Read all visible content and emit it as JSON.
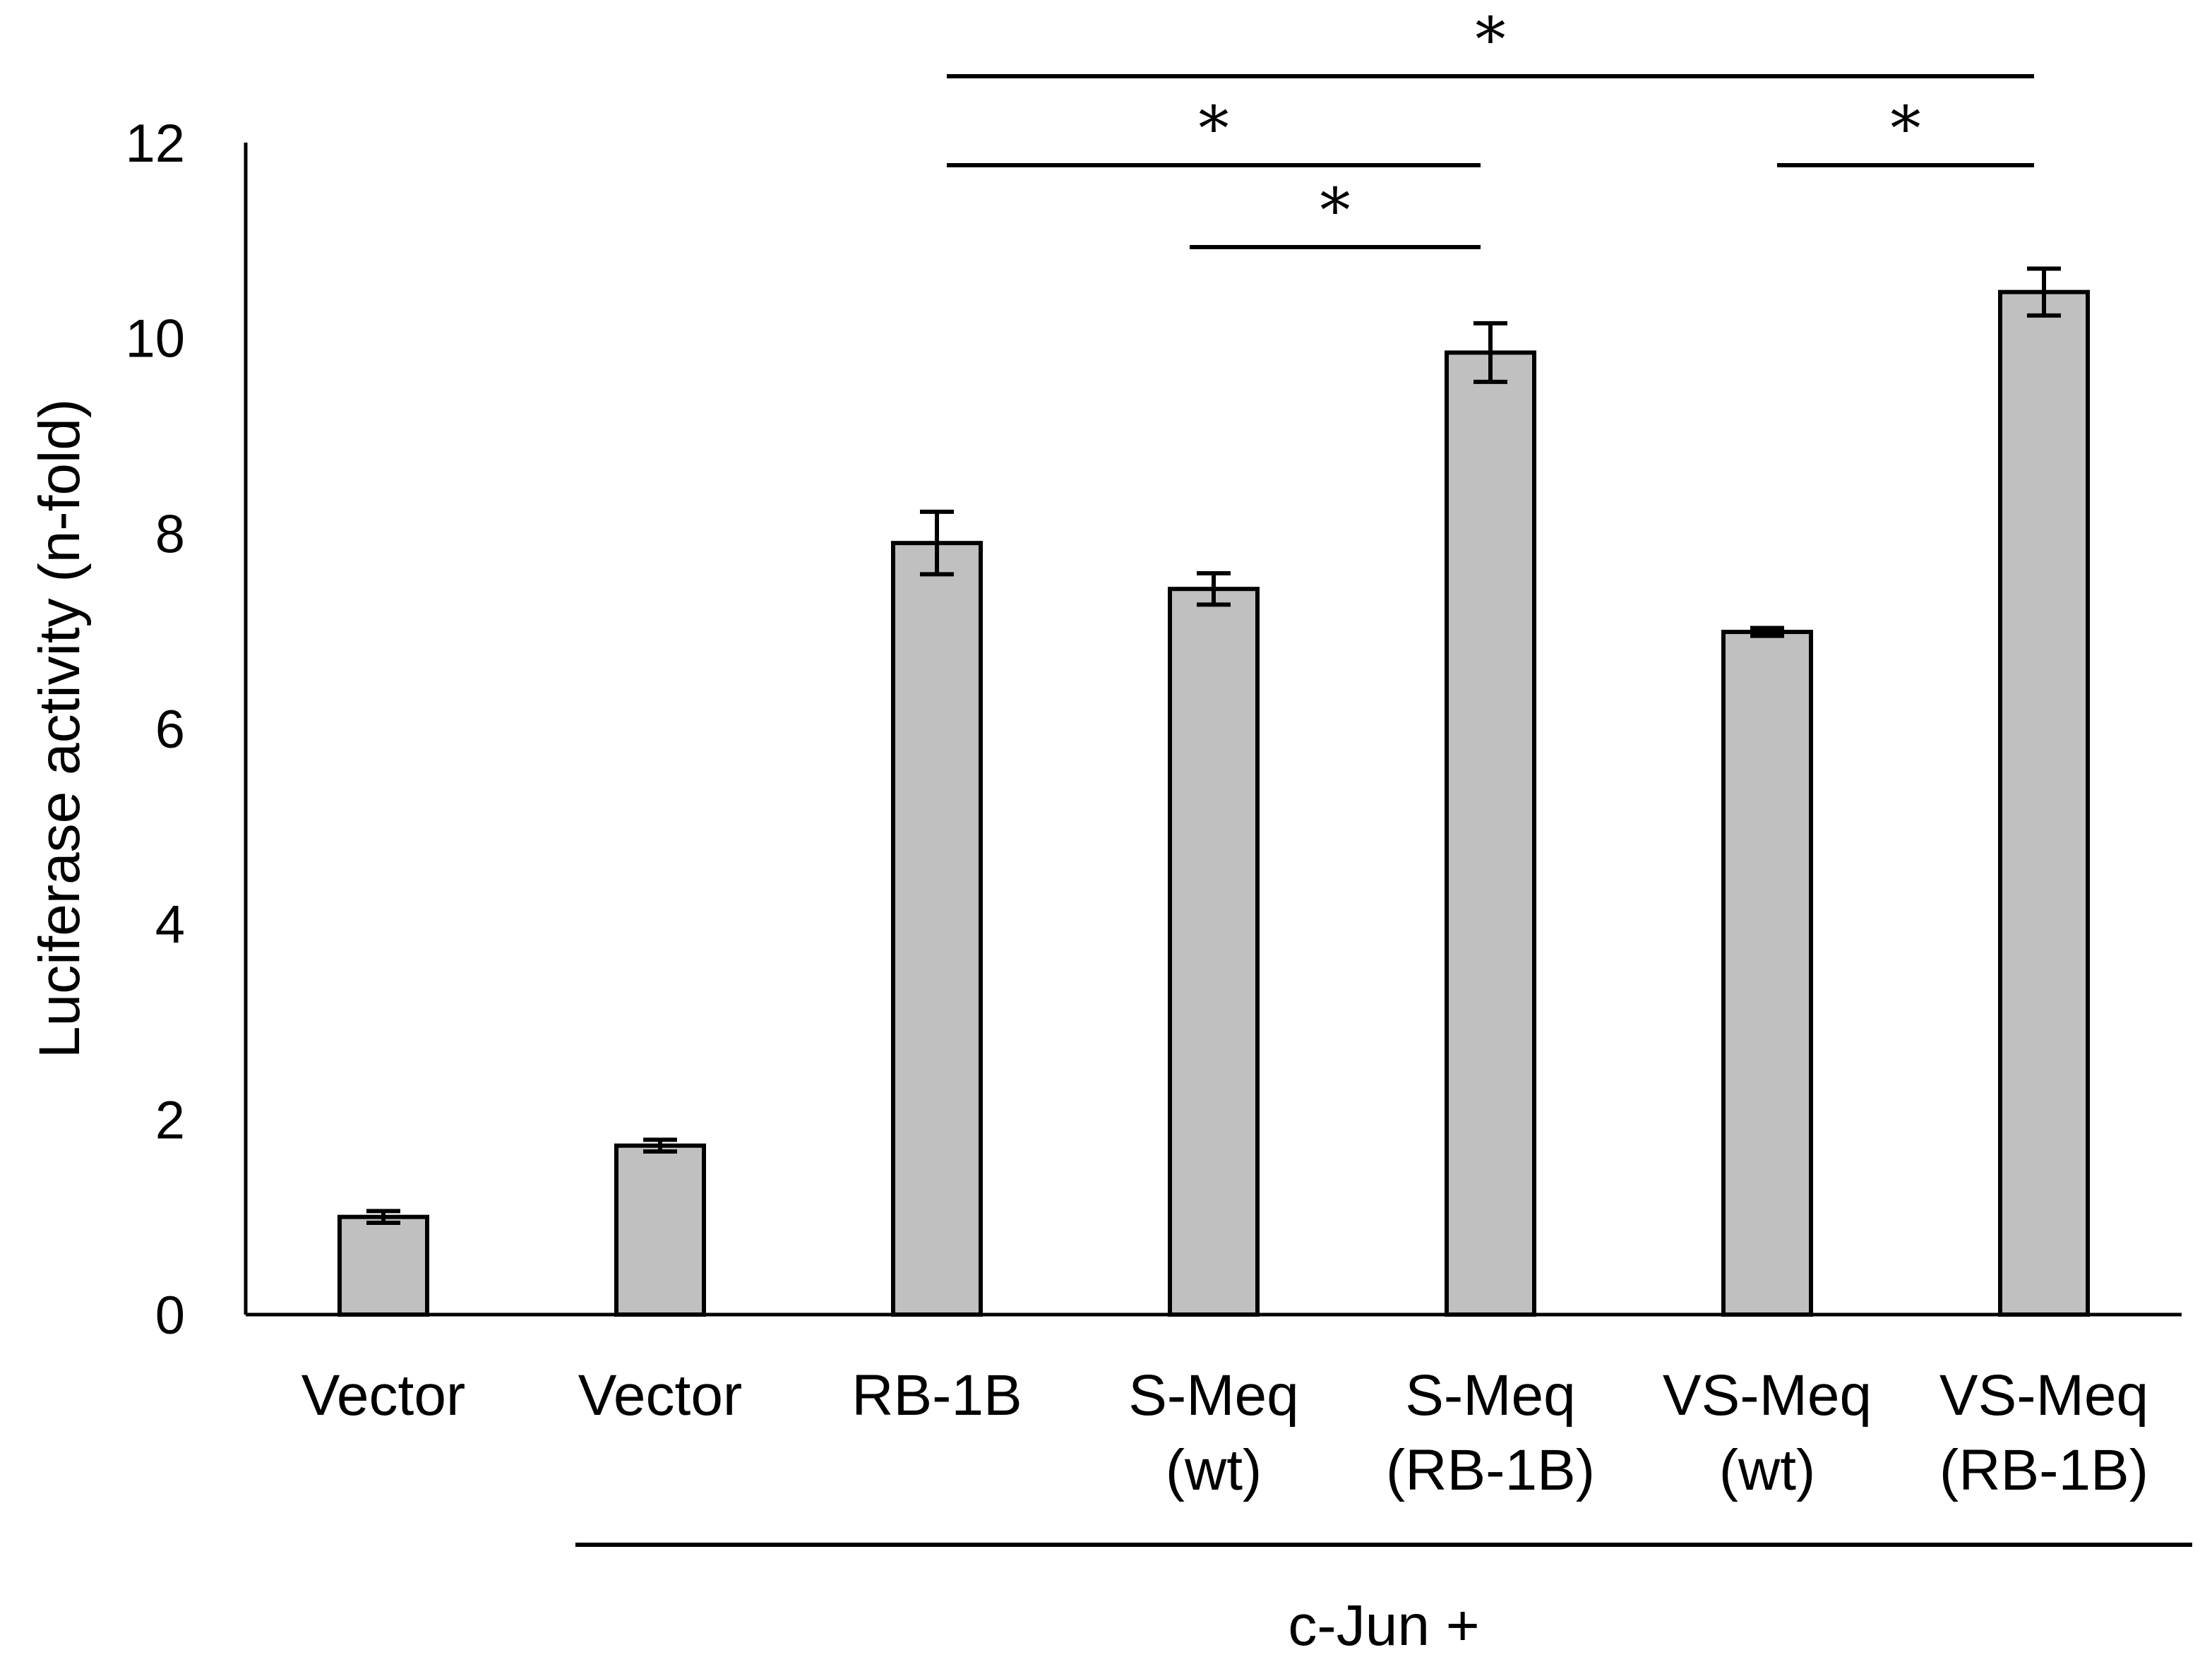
{
  "chart_data": {
    "type": "bar",
    "title": "",
    "xlabel": "",
    "ylabel": "Luciferase activity (n-fold)",
    "ylim": [
      0,
      12
    ],
    "yticks": [
      0,
      2,
      4,
      6,
      8,
      10,
      12
    ],
    "grid": false,
    "bar_color": "#c0c0c0",
    "categories": [
      {
        "line1": "Vector",
        "line2": ""
      },
      {
        "line1": "Vector",
        "line2": ""
      },
      {
        "line1": "RB-1B",
        "line2": ""
      },
      {
        "line1": "S-Meq",
        "line2": "(wt)"
      },
      {
        "line1": "S-Meq",
        "line2": "(RB-1B)"
      },
      {
        "line1": "VS-Meq",
        "line2": "(wt)"
      },
      {
        "line1": "VS-Meq",
        "line2": "(RB-1B)"
      }
    ],
    "values": [
      1.0,
      1.73,
      7.9,
      7.43,
      9.85,
      6.99,
      10.47
    ],
    "errors": [
      0.06,
      0.06,
      0.32,
      0.16,
      0.3,
      0.04,
      0.24
    ],
    "group": {
      "label": "c-Jun +",
      "from_index": 1,
      "to_index": 6
    },
    "significance": [
      {
        "from": 2,
        "to": 6,
        "label": "*",
        "level": 1
      },
      {
        "from": 2,
        "to": 4,
        "label": "*",
        "level": 2
      },
      {
        "from": 5,
        "to": 6,
        "label": "*",
        "level": 2
      },
      {
        "from": 3,
        "to": 4,
        "label": "*",
        "level": 3
      }
    ]
  }
}
